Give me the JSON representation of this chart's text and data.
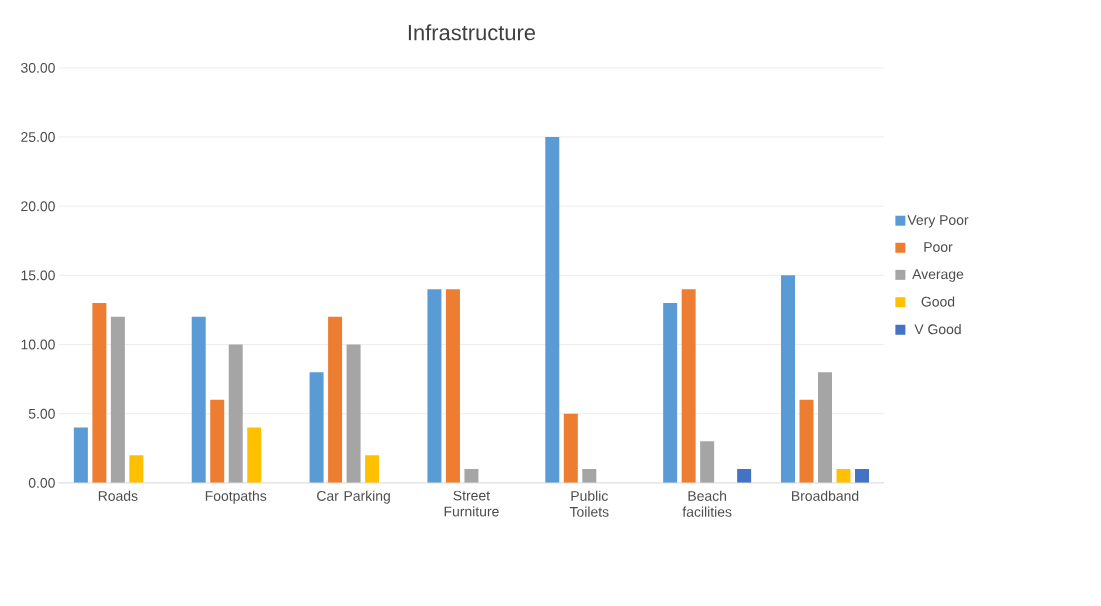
{
  "chart_data": {
    "type": "bar",
    "title": "Infrastructure",
    "categories": [
      "Roads",
      "Footpaths",
      "Car Parking",
      "Street Furniture",
      "Public Toilets",
      "Beach facilities",
      "Broadband"
    ],
    "series": [
      {
        "name": "Very Poor",
        "color": "#5b9bd5",
        "values": [
          4,
          12,
          8,
          14,
          25,
          13,
          15
        ]
      },
      {
        "name": "Poor",
        "color": "#ed7d31",
        "values": [
          13,
          6,
          12,
          14,
          5,
          14,
          6
        ]
      },
      {
        "name": "Average",
        "color": "#a5a5a5",
        "values": [
          12,
          10,
          10,
          1,
          1,
          3,
          8
        ]
      },
      {
        "name": "Good",
        "color": "#ffc000",
        "values": [
          2,
          4,
          2,
          0,
          0,
          0,
          1
        ]
      },
      {
        "name": "V Good",
        "color": "#4472c4",
        "values": [
          0,
          0,
          0,
          0,
          0,
          1,
          1
        ]
      }
    ],
    "ylim": [
      0,
      30
    ],
    "yticks": [
      {
        "value": 0,
        "label": "0.00"
      },
      {
        "value": 5,
        "label": "5.00"
      },
      {
        "value": 10,
        "label": "10.00"
      },
      {
        "value": 15,
        "label": "15.00"
      },
      {
        "value": 20,
        "label": "20.00"
      },
      {
        "value": 25,
        "label": "25.00"
      },
      {
        "value": 30,
        "label": "30.00"
      }
    ],
    "grid": "y",
    "legend": "right"
  }
}
